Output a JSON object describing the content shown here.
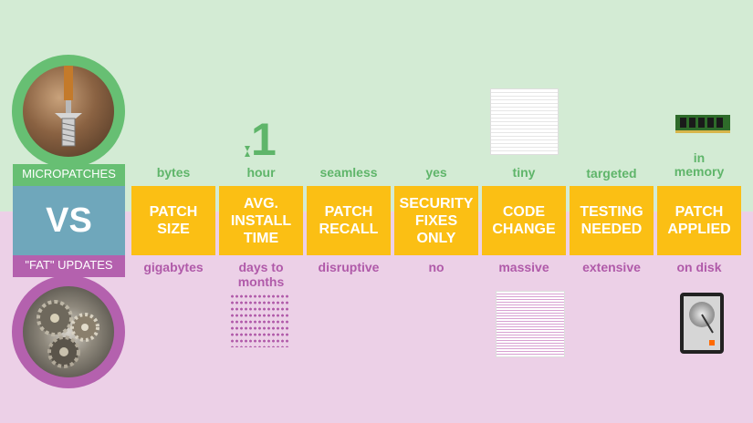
{
  "left": {
    "top_label": "MICROPATCHES",
    "vs": "VS",
    "bottom_label": "\"FAT\" UPDATES"
  },
  "highlight": {
    "number": "1"
  },
  "columns": [
    {
      "title": "PATCH SIZE",
      "micro": "bytes",
      "fat": "gigabytes"
    },
    {
      "title": "AVG. INSTALL TIME",
      "micro": "hour",
      "fat": "days to months"
    },
    {
      "title": "PATCH RECALL",
      "micro": "seamless",
      "fat": "disruptive"
    },
    {
      "title": "SECURITY FIXES ONLY",
      "micro": "yes",
      "fat": "no"
    },
    {
      "title": "CODE CHANGE",
      "micro": "tiny",
      "fat": "massive"
    },
    {
      "title": "TESTING NEEDED",
      "micro": "targeted",
      "fat": "extensive"
    },
    {
      "title": "PATCH APPLIED",
      "micro": "in memory",
      "fat": "on disk"
    }
  ],
  "colors": {
    "green": "#67bf73",
    "purple": "#b461ae",
    "yellow": "#fbbf14",
    "blue": "#6fa7bb"
  },
  "icons": [
    "hourglass-icon",
    "document-icon",
    "ram-chip-icon",
    "hard-drive-icon",
    "people-icon"
  ]
}
